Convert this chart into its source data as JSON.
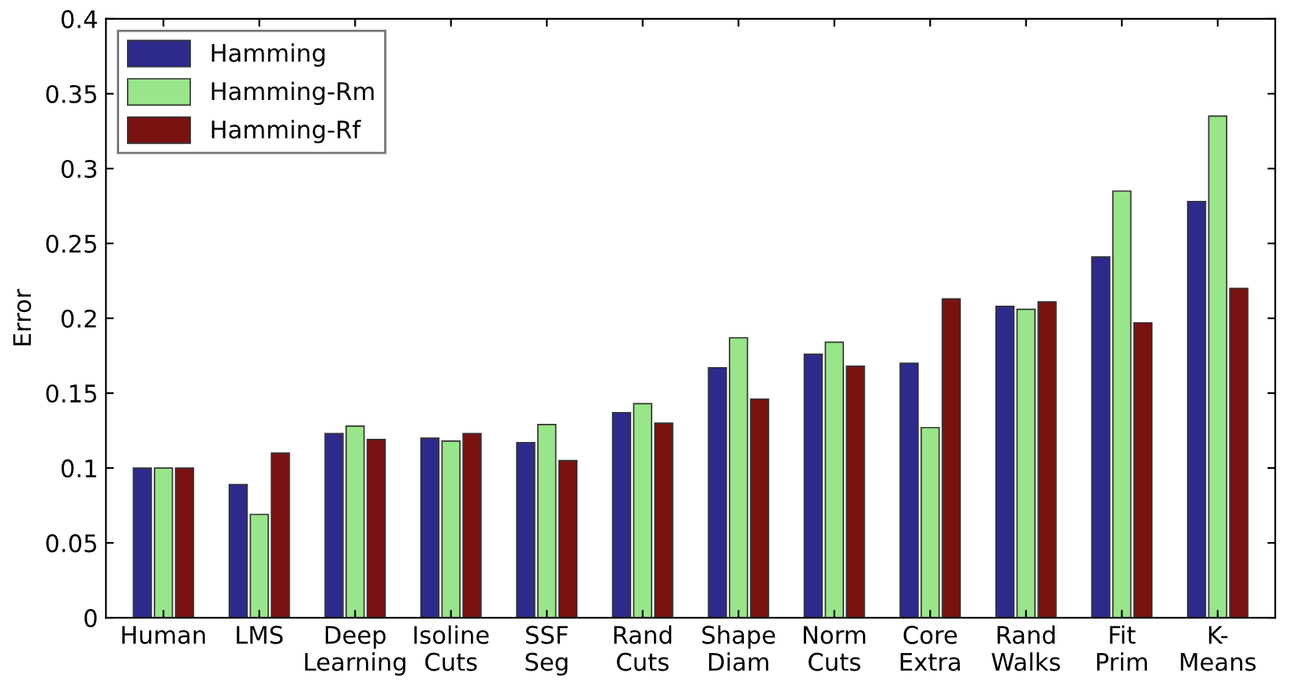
{
  "chart_data": {
    "type": "bar",
    "ylabel": "Error",
    "categories": [
      "Human",
      "LMS",
      "Deep\nLearning",
      "Isoline\nCuts",
      "SSF\nSeg",
      "Rand\nCuts",
      "Shape\nDiam",
      "Norm\nCuts",
      "Core\nExtra",
      "Rand\nWalks",
      "Fit\nPrim",
      "K-\nMeans"
    ],
    "series": [
      {
        "name": "Hamming",
        "color": "#2e2a8c",
        "values": [
          0.1,
          0.089,
          0.123,
          0.12,
          0.117,
          0.137,
          0.167,
          0.176,
          0.17,
          0.208,
          0.241,
          0.278
        ]
      },
      {
        "name": "Hamming-Rm",
        "color": "#99e58a",
        "values": [
          0.1,
          0.069,
          0.128,
          0.118,
          0.129,
          0.143,
          0.187,
          0.184,
          0.127,
          0.206,
          0.285,
          0.335
        ]
      },
      {
        "name": "Hamming-Rf",
        "color": "#7a1212",
        "values": [
          0.1,
          0.11,
          0.119,
          0.123,
          0.105,
          0.13,
          0.146,
          0.168,
          0.213,
          0.211,
          0.197,
          0.22
        ]
      }
    ],
    "ylim": [
      0,
      0.4
    ],
    "yticks": [
      0,
      0.05,
      0.1,
      0.15,
      0.2,
      0.25,
      0.3,
      0.35,
      0.4
    ],
    "grid": false,
    "legend": "top left"
  }
}
